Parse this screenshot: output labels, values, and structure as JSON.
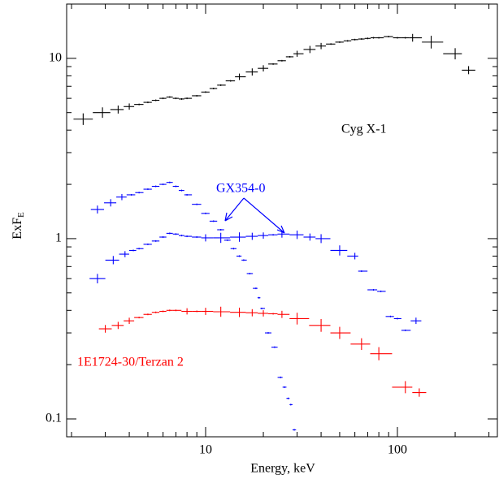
{
  "chart_data": {
    "type": "scatter",
    "xlabel": "Energy, keV",
    "ylabel": "ExF",
    "ylabel_sub": "E",
    "xscale": "log",
    "yscale": "log",
    "xlim": [
      1.886,
      332
    ],
    "ylim": [
      0.0796,
      20
    ],
    "xticks": [
      10,
      100
    ],
    "yticks": [
      0.1,
      1,
      10
    ],
    "xminor": [
      2,
      3,
      4,
      5,
      6,
      7,
      8,
      9,
      20,
      30,
      40,
      50,
      60,
      70,
      80,
      90,
      200,
      300
    ],
    "yminor": [
      0.2,
      0.3,
      0.4,
      0.5,
      0.6,
      0.7,
      0.8,
      0.9,
      2,
      3,
      4,
      5,
      6,
      7,
      8,
      9
    ],
    "series": [
      {
        "name": "Cyg X-1",
        "color": "#000000",
        "x": [
          2.3,
          2.9,
          3.5,
          4,
          4.5,
          5,
          5.5,
          6,
          6.5,
          7,
          7.5,
          8,
          9,
          10,
          11,
          12,
          13.5,
          15,
          17.5,
          20,
          22.5,
          25,
          27.5,
          30,
          35,
          40,
          45,
          50,
          55,
          60,
          65,
          70,
          75,
          80,
          90,
          100,
          110,
          120,
          150,
          200,
          235
        ],
        "values": [
          4.6,
          5.0,
          5.2,
          5.4,
          5.55,
          5.7,
          5.85,
          6.0,
          6.1,
          6.0,
          5.95,
          6.0,
          6.2,
          6.5,
          6.8,
          7.1,
          7.5,
          7.9,
          8.4,
          8.8,
          9.3,
          9.7,
          10.2,
          10.6,
          11.2,
          11.7,
          12.0,
          12.3,
          12.5,
          12.7,
          12.8,
          12.9,
          13.0,
          13.0,
          13.2,
          13.0,
          13.0,
          13.0,
          12.3,
          10.6,
          8.6
        ]
      },
      {
        "name": "GX354-0",
        "color": "#0000ff",
        "x": [
          2.73,
          3.2,
          3.66,
          4.1,
          4.5,
          5,
          5.5,
          6,
          6.5,
          7,
          7.5,
          8,
          9,
          10,
          11,
          12,
          13,
          14,
          15,
          15.8,
          17,
          18.3,
          19,
          19.6,
          21.2,
          22.9,
          24.6,
          25.8,
          27,
          27.8,
          29
        ],
        "values": [
          1.45,
          1.58,
          1.7,
          1.75,
          1.8,
          1.88,
          1.95,
          2.0,
          2.05,
          1.95,
          1.85,
          1.75,
          1.55,
          1.38,
          1.25,
          1.12,
          0.98,
          0.88,
          0.8,
          0.76,
          0.64,
          0.53,
          0.47,
          0.41,
          0.3,
          0.25,
          0.17,
          0.15,
          0.13,
          0.12,
          0.087
        ]
      },
      {
        "color": "#0000ff",
        "x": [
          2.73,
          3.3,
          3.8,
          4.2,
          4.5,
          5,
          5.5,
          6,
          6.5,
          7,
          7.5,
          8,
          9,
          10,
          12,
          15,
          17.5,
          20,
          22.5,
          25,
          30,
          35,
          40,
          50,
          60,
          65,
          75,
          82,
          92,
          100,
          110,
          125
        ],
        "values": [
          0.6,
          0.76,
          0.82,
          0.86,
          0.88,
          0.93,
          0.97,
          1.02,
          1.07,
          1.06,
          1.04,
          1.03,
          1.02,
          1.01,
          1.01,
          1.02,
          1.03,
          1.04,
          1.05,
          1.06,
          1.05,
          1.02,
          1.0,
          0.86,
          0.8,
          0.66,
          0.52,
          0.51,
          0.37,
          0.36,
          0.31,
          0.35
        ]
      },
      {
        "name": "1E1724-30/Terzan 2",
        "color": "#ff0000",
        "x": [
          3.0,
          3.5,
          4,
          4.5,
          5,
          5.5,
          6,
          6.5,
          7,
          8,
          9,
          10,
          12,
          15,
          17.5,
          20,
          22.5,
          25,
          30,
          40,
          50,
          65,
          80,
          110,
          130
        ],
        "values": [
          0.316,
          0.33,
          0.35,
          0.365,
          0.38,
          0.39,
          0.395,
          0.4,
          0.4,
          0.395,
          0.395,
          0.395,
          0.393,
          0.39,
          0.388,
          0.385,
          0.383,
          0.38,
          0.36,
          0.33,
          0.3,
          0.26,
          0.23,
          0.15,
          0.14
        ]
      }
    ]
  }
}
